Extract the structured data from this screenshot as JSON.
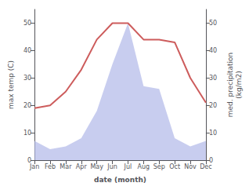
{
  "chart_data": {
    "type": "area",
    "xlabel": "date (month)",
    "ylabel": "max temp (C)",
    "y2label": "med. precipitation\n(kg/m2)",
    "categories": [
      "Jan",
      "Feb",
      "Mar",
      "Apr",
      "May",
      "Jun",
      "Jul",
      "Aug",
      "Sep",
      "Oct",
      "Nov",
      "Dec"
    ],
    "series": [
      {
        "type": "area",
        "color": "#b0b8e8",
        "values": [
          7,
          4,
          5,
          8,
          18,
          35,
          50,
          27,
          26,
          8,
          5,
          7
        ]
      },
      {
        "type": "line",
        "color": "#cd5c5c",
        "axis": "y2",
        "values": [
          19,
          20,
          25,
          33,
          44,
          50,
          50,
          44,
          44,
          43,
          30,
          21
        ]
      }
    ],
    "ylim": [
      0,
      55
    ],
    "yticks": [
      0,
      10,
      20,
      30,
      40,
      50
    ],
    "y2lim": [
      0,
      55
    ],
    "y2ticks": [
      0,
      10,
      20,
      30,
      40,
      50
    ],
    "grid": false
  }
}
